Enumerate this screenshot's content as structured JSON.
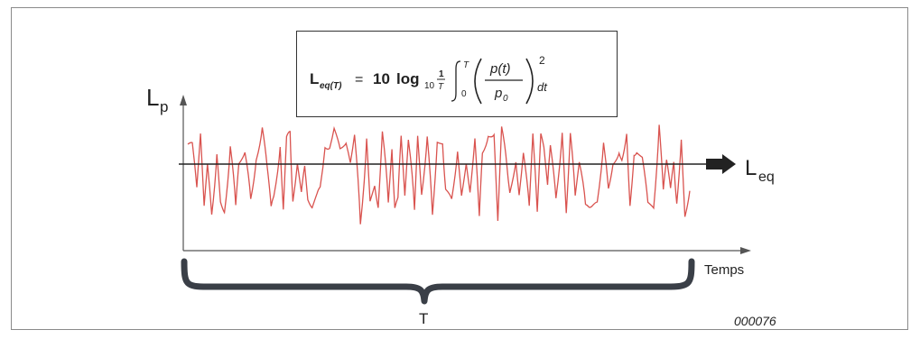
{
  "formula": {
    "lhs_main": "L",
    "lhs_sub": "eq(T)",
    "equals": "=",
    "coefficient": "10",
    "log": "log",
    "log_base": "10",
    "frac_num": "1",
    "frac_den": "T",
    "int_upper": "T",
    "int_lower": "0",
    "ratio_num": "p(t)",
    "ratio_den": "p",
    "ratio_den_sub": "0",
    "exponent": "2",
    "differential": "dt"
  },
  "labels": {
    "y_axis_main": "L",
    "y_axis_sub": "p",
    "leq_main": "L",
    "leq_sub": "eq",
    "x_axis": "Temps",
    "period": "T",
    "figure_code": "000076"
  },
  "colors": {
    "signal": "#d9534f",
    "axis": "#555555",
    "brace": "#3a3f47",
    "leq_line": "#222222"
  }
}
